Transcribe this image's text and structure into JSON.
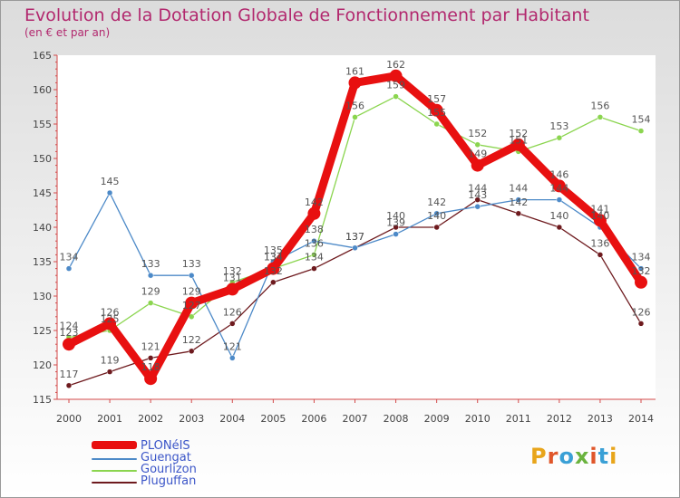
{
  "title": "Evolution de la Dotation Globale de Fonctionnement par Habitant",
  "subtitle": "(en € et par an)",
  "logo_text": "Proxiti",
  "logo_colors": [
    "#e8a51b",
    "#e0562a",
    "#3aa0d6",
    "#6ab33e",
    "#e0562a",
    "#3aa0d6",
    "#e8a51b"
  ],
  "chart_data": {
    "type": "line",
    "title": "Evolution de la Dotation Globale de Fonctionnement par Habitant",
    "subtitle": "(en € et par an)",
    "x": [
      "2000",
      "2001",
      "2002",
      "2003",
      "2004",
      "2005",
      "2006",
      "2007",
      "2008",
      "2009",
      "2010",
      "2011",
      "2012",
      "2013",
      "2014"
    ],
    "ylim": [
      115,
      165
    ],
    "yticks": [
      115,
      120,
      125,
      130,
      135,
      140,
      145,
      150,
      155,
      160,
      165
    ],
    "grid": false,
    "legend_position": "bottom-left",
    "series": [
      {
        "name": "PLONéIS",
        "color": "#e81010",
        "values": [
          123,
          126,
          118,
          129,
          131,
          134,
          142,
          161,
          162,
          157,
          149,
          152,
          146,
          141,
          132
        ]
      },
      {
        "name": "Guengat",
        "color": "#4d8ac8",
        "values": [
          134,
          145,
          133,
          133,
          121,
          135,
          138,
          137,
          139,
          142,
          143,
          144,
          144,
          140,
          134
        ]
      },
      {
        "name": "Gourlizon",
        "color": "#8bd54f",
        "values": [
          124,
          125,
          129,
          127,
          132,
          134,
          136,
          156,
          159,
          155,
          152,
          151,
          153,
          156,
          154
        ]
      },
      {
        "name": "Pluguffan",
        "color": "#6e1a1e",
        "values": [
          117,
          119,
          121,
          122,
          126,
          132,
          134,
          137,
          140,
          140,
          144,
          142,
          140,
          136,
          126
        ]
      }
    ]
  }
}
